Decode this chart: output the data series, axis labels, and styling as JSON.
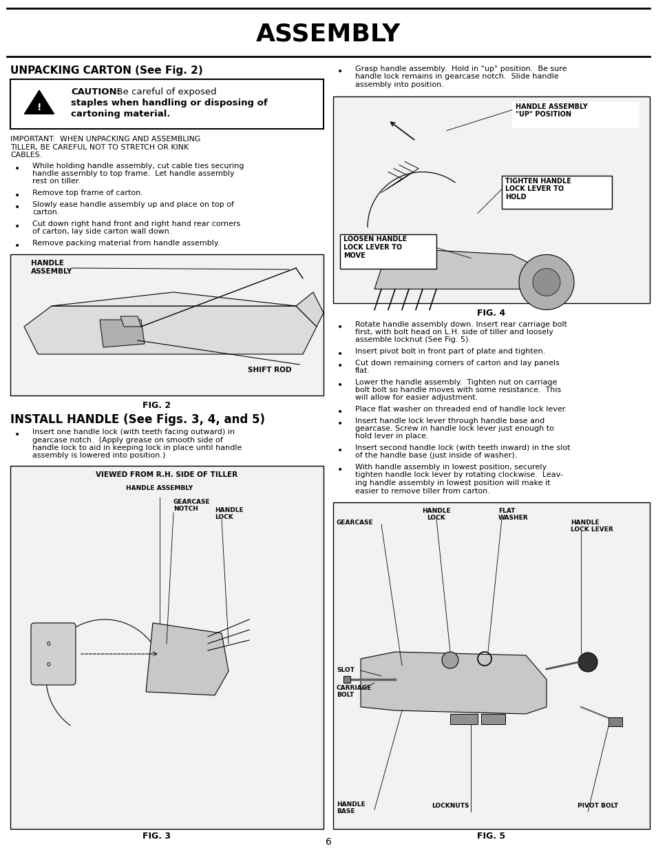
{
  "page_bg": "#ffffff",
  "title": "ASSEMBLY",
  "page_number": "6",
  "unpack_title": "UNPACKING CARTON (See Fig. 2)",
  "install_title": "INSTALL HANDLE (See Figs. 3, 4, and 5)",
  "caution_bold": "CAUTION:",
  "caution_rest": "  Be careful of exposed\nstaples when handling or disposing of\ncartoning material.",
  "important_text": "IMPORTANT:  WHEN UNPACKING AND ASSEMBLING\nTILLER, BE CAREFUL NOT TO STRETCH OR KINK\nCABLES.",
  "left_bullets": [
    "While holding handle assembly, cut cable ties securing\nhandle assembly to top frame.  Let handle assembly\nrest on tiller.",
    "Remove top frame of carton.",
    "Slowly ease handle assembly up and place on top of\ncarton.",
    "Cut down right hand front and right hand rear corners\nof carton, lay side carton wall down.",
    "Remove packing material from handle assembly."
  ],
  "install_bullet": "Insert one handle lock (with teeth facing outward) in\ngearcase notch.  (Apply grease on smooth side of\nhandle lock to aid in keeping lock in place until handle\nassembly is lowered into position.)",
  "right_bullets_top": [
    "Grasp handle assembly.  Hold in \"up\" position.  Be sure\nhandle lock remains in gearcase notch.  Slide handle\nassembly into position."
  ],
  "right_bullets_bottom": [
    "Rotate handle assembly down. Insert rear carriage bolt\nfirst, with bolt head on L.H. side of tiller and loosely\nassemble locknut (See Fig. 5).",
    "Insert pivot bolt in front part of plate and tighten.",
    "Cut down remaining corners of carton and lay panels\nflat.",
    "Lower the handle assembly.  Tighten nut on carriage\nbolt bolt so handle moves with some resistance.  This\nwill allow for easier adjustment.",
    "Place flat washer on threaded end of handle lock lever.",
    "Insert handle lock lever through handle base and\ngearcase. Screw in handle lock lever just enough to\nhold lever in place.",
    "Insert second handle lock (with teeth inward) in the slot\nof the handle base (just inside of washer).",
    "With handle assembly in lowest position, securely\ntighten handle lock lever by rotating clockwise.  Leav-\ning handle assembly in lowest position will make it\neasier to remove tiller from carton."
  ],
  "fig2_caption": "FIG. 2",
  "fig3_caption": "FIG. 3",
  "fig4_caption": "FIG. 4",
  "fig5_caption": "FIG. 5",
  "fig3_title": "VIEWED FROM R.H. SIDE OF TILLER",
  "fig2_label1": "HANDLE\nASSEMBLY",
  "fig2_label2": "SHIFT ROD",
  "fig4_label1": "HANDLE ASSEMBLY\n\"UP\" POSITION",
  "fig4_label2": "TIGHTEN HANDLE\nLOCK LEVER TO\nHOLD",
  "fig4_label3": "LOOSEN HANDLE\nLOCK LEVER TO\nMOVE",
  "fig3_label1": "HANDLE ASSEMBLY",
  "fig3_label2": "GEARCASE\nNOTCH",
  "fig3_label3": "HANDLE\nLOCK",
  "fig5_label1": "HANDLE\nLOCK",
  "fig5_label2": "FLAT\nWASHER",
  "fig5_label3": "GEARCASE",
  "fig5_label4": "HANDLE\nLOCK LEVER",
  "fig5_label5": "SLOT",
  "fig5_label6": "CARRIAGE\nBOLT",
  "fig5_label7": "HANDLE\nBASE",
  "fig5_label8": "LOCKNUTS",
  "fig5_label9": "PIVOT BOLT"
}
